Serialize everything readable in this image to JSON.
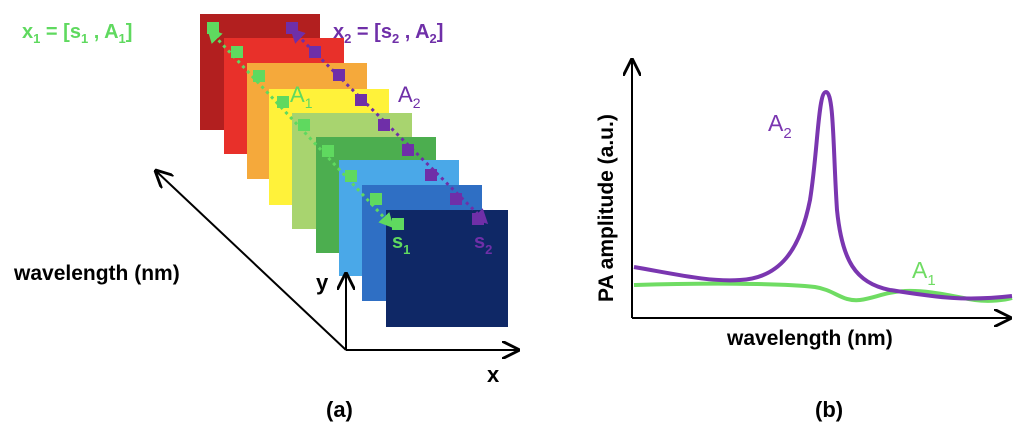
{
  "panel_a": {
    "caption": "(a)",
    "x1_eq": {
      "lhs": "x",
      "sub": "1",
      "mid": " = [s",
      "sub2": "1",
      "mid2": " , A",
      "sub3": "1",
      "end": "]"
    },
    "x2_eq": {
      "lhs": "x",
      "sub": "2",
      "mid": " = [s",
      "sub2": "2",
      "mid2": " , A",
      "sub3": "2",
      "end": "]"
    },
    "a1": {
      "base": "A",
      "sub": "1"
    },
    "a2": {
      "base": "A",
      "sub": "2"
    },
    "s1": {
      "base": "s",
      "sub": "1"
    },
    "s2": {
      "base": "s",
      "sub": "2"
    },
    "wavelength_axis_label": "wavelength (nm)",
    "y_axis_label": "y",
    "x_axis_label": "x",
    "colors": {
      "green_marker": "#5fd95f",
      "purple_marker": "#6f2fa8",
      "layers": [
        "#b21f1f",
        "#e8302a",
        "#f5a93b",
        "#fff23a",
        "#a8d46f",
        "#4cae4f",
        "#2e9f5e",
        "#4aa8e8",
        "#2f6fc4",
        "#0f2866"
      ]
    }
  },
  "panel_b": {
    "caption": "(b)",
    "y_axis_label": "PA amplitude (a.u.)",
    "x_axis_label": "wavelength (nm)",
    "curve_a2": {
      "base": "A",
      "sub": "2"
    },
    "curve_a1": {
      "base": "A",
      "sub": "1"
    },
    "colors": {
      "a1": "#6fdc63",
      "a2": "#7a36b0",
      "axis": "#000000"
    }
  }
}
